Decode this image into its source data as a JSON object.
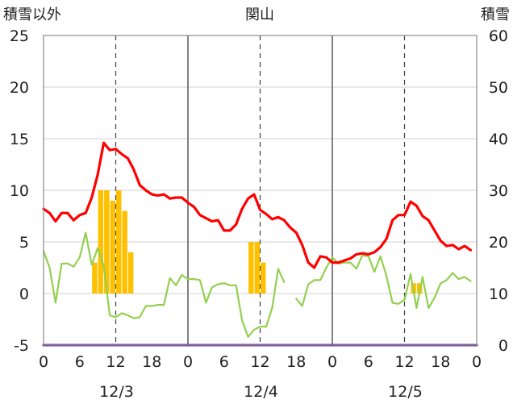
{
  "chart_data": {
    "type": "line",
    "title": "関山",
    "left_axis_title": "積雪以外",
    "right_axis_title": "積雪",
    "y_left": {
      "min": -5,
      "max": 25,
      "ticks": [
        25,
        20,
        15,
        10,
        5,
        0,
        -5
      ]
    },
    "y_right": {
      "min": 0,
      "max": 60,
      "ticks": [
        60,
        50,
        40,
        30,
        20,
        10,
        0
      ]
    },
    "x": {
      "start_hour": 0,
      "end_hour": 72,
      "hour_ticks": [
        0,
        6,
        12,
        18,
        0,
        6,
        12,
        18,
        0,
        6,
        12,
        18,
        0
      ]
    },
    "dates": [
      "12/3",
      "12/4",
      "12/5"
    ],
    "grid": true,
    "colors": {
      "temperature": "#ff0000",
      "sub_series": "#92d050",
      "precipitation": "#ffc000",
      "base": "#7030a0",
      "solid_grid": "#808080",
      "dashed_grid": "#404040"
    },
    "series": [
      {
        "key": "temperature",
        "axis": "left",
        "values": [
          [
            0,
            8.2
          ],
          [
            0.5,
            8.0
          ],
          [
            1,
            7.8
          ],
          [
            2,
            7.0
          ],
          [
            3,
            7.8
          ],
          [
            4,
            7.8
          ],
          [
            5,
            7.1
          ],
          [
            6,
            7.6
          ],
          [
            7,
            7.8
          ],
          [
            8,
            9.3
          ],
          [
            9,
            11.5
          ],
          [
            10,
            14.6
          ],
          [
            11,
            13.9
          ],
          [
            12,
            14.0
          ],
          [
            13,
            13.5
          ],
          [
            14,
            13.1
          ],
          [
            15,
            12.0
          ],
          [
            16,
            10.5
          ],
          [
            17,
            10.0
          ],
          [
            18,
            9.6
          ],
          [
            19,
            9.5
          ],
          [
            20,
            9.6
          ],
          [
            21,
            9.2
          ],
          [
            22,
            9.3
          ],
          [
            23,
            9.3
          ],
          [
            24,
            8.8
          ],
          [
            25,
            8.4
          ],
          [
            26,
            7.6
          ],
          [
            27,
            7.3
          ],
          [
            28,
            7.0
          ],
          [
            29,
            7.1
          ],
          [
            30,
            6.1
          ],
          [
            31,
            6.1
          ],
          [
            32,
            6.7
          ],
          [
            33,
            8.2
          ],
          [
            34,
            9.2
          ],
          [
            35,
            9.6
          ],
          [
            36,
            8.1
          ],
          [
            37,
            7.7
          ],
          [
            38,
            7.2
          ],
          [
            39,
            7.4
          ],
          [
            40,
            7.1
          ],
          [
            41,
            6.4
          ],
          [
            42,
            5.9
          ],
          [
            43,
            4.7
          ],
          [
            44,
            3.0
          ],
          [
            45,
            2.5
          ],
          [
            46,
            3.6
          ],
          [
            47,
            3.5
          ],
          [
            48,
            3.0
          ],
          [
            49,
            3.0
          ],
          [
            50,
            3.2
          ],
          [
            51,
            3.4
          ],
          [
            52,
            3.8
          ],
          [
            53,
            3.9
          ],
          [
            54,
            3.8
          ],
          [
            55,
            4.0
          ],
          [
            56,
            4.5
          ],
          [
            57,
            5.3
          ],
          [
            58,
            7.1
          ],
          [
            59,
            7.6
          ],
          [
            60,
            7.6
          ],
          [
            61,
            8.9
          ],
          [
            62,
            8.5
          ],
          [
            63,
            7.5
          ],
          [
            64,
            7.1
          ],
          [
            65,
            6.1
          ],
          [
            66,
            5.1
          ],
          [
            67,
            4.6
          ],
          [
            68,
            4.7
          ],
          [
            69,
            4.3
          ],
          [
            70,
            4.6
          ],
          [
            71,
            4.2
          ]
        ]
      },
      {
        "key": "sub_series",
        "axis": "left",
        "segments": [
          [
            [
              0,
              4.1
            ],
            [
              1,
              2.5
            ],
            [
              2,
              -0.9
            ],
            [
              3,
              2.9
            ],
            [
              4,
              2.9
            ],
            [
              5,
              2.6
            ],
            [
              6,
              3.5
            ],
            [
              7,
              5.9
            ],
            [
              8,
              2.8
            ],
            [
              9,
              4.4
            ],
            [
              10,
              2.7
            ],
            [
              11,
              -2.1
            ],
            [
              12,
              -2.3
            ],
            [
              13,
              -1.9
            ],
            [
              14,
              -2.1
            ],
            [
              15,
              -2.4
            ],
            [
              16,
              -2.3
            ],
            [
              17,
              -1.2
            ],
            [
              18,
              -1.2
            ],
            [
              19,
              -1.1
            ],
            [
              20,
              -1.1
            ],
            [
              21,
              1.5
            ],
            [
              22,
              0.8
            ],
            [
              23,
              1.8
            ],
            [
              24,
              1.4
            ],
            [
              25,
              1.4
            ],
            [
              26,
              1.3
            ],
            [
              27,
              -0.9
            ],
            [
              28,
              0.6
            ],
            [
              29,
              0.9
            ],
            [
              30,
              1.0
            ],
            [
              31,
              0.8
            ],
            [
              32,
              0.8
            ],
            [
              33,
              -2.6
            ],
            [
              34,
              -4.2
            ],
            [
              35,
              -3.5
            ],
            [
              36,
              -3.2
            ],
            [
              37,
              -3.2
            ],
            [
              38,
              -1.4
            ],
            [
              39,
              2.4
            ],
            [
              40,
              1.1
            ]
          ],
          [
            [
              42,
              -0.5
            ],
            [
              43,
              -1.2
            ],
            [
              44,
              0.9
            ],
            [
              45,
              1.3
            ],
            [
              46,
              1.3
            ],
            [
              47,
              2.5
            ],
            [
              48,
              3.5
            ],
            [
              49,
              2.9
            ],
            [
              50,
              3.0
            ],
            [
              51,
              3.0
            ],
            [
              52,
              2.4
            ],
            [
              53,
              3.7
            ],
            [
              54,
              3.6
            ],
            [
              55,
              2.1
            ],
            [
              56,
              3.6
            ],
            [
              57,
              1.7
            ],
            [
              58,
              -0.9
            ],
            [
              59,
              -1.0
            ],
            [
              60,
              -0.6
            ],
            [
              61,
              1.9
            ],
            [
              62,
              -1.4
            ],
            [
              63,
              1.6
            ],
            [
              64,
              -1.4
            ],
            [
              65,
              -0.4
            ],
            [
              66,
              1.0
            ],
            [
              67,
              1.3
            ],
            [
              68,
              2.0
            ],
            [
              69,
              1.4
            ],
            [
              70,
              1.6
            ],
            [
              71,
              1.2
            ]
          ]
        ]
      },
      {
        "key": "precipitation",
        "axis": "left",
        "bars": [
          [
            8,
            3.0
          ],
          [
            9,
            10.0
          ],
          [
            10,
            10.0
          ],
          [
            11,
            9.0
          ],
          [
            12,
            10.0
          ],
          [
            13,
            8.0
          ],
          [
            14,
            4.0
          ],
          [
            34,
            5.0
          ],
          [
            35,
            5.0
          ],
          [
            36,
            3.0
          ],
          [
            61,
            1.0
          ],
          [
            62,
            1.0
          ]
        ]
      },
      {
        "key": "base",
        "axis": "left",
        "values": [
          [
            0,
            -5
          ],
          [
            72,
            -5
          ]
        ]
      }
    ]
  }
}
